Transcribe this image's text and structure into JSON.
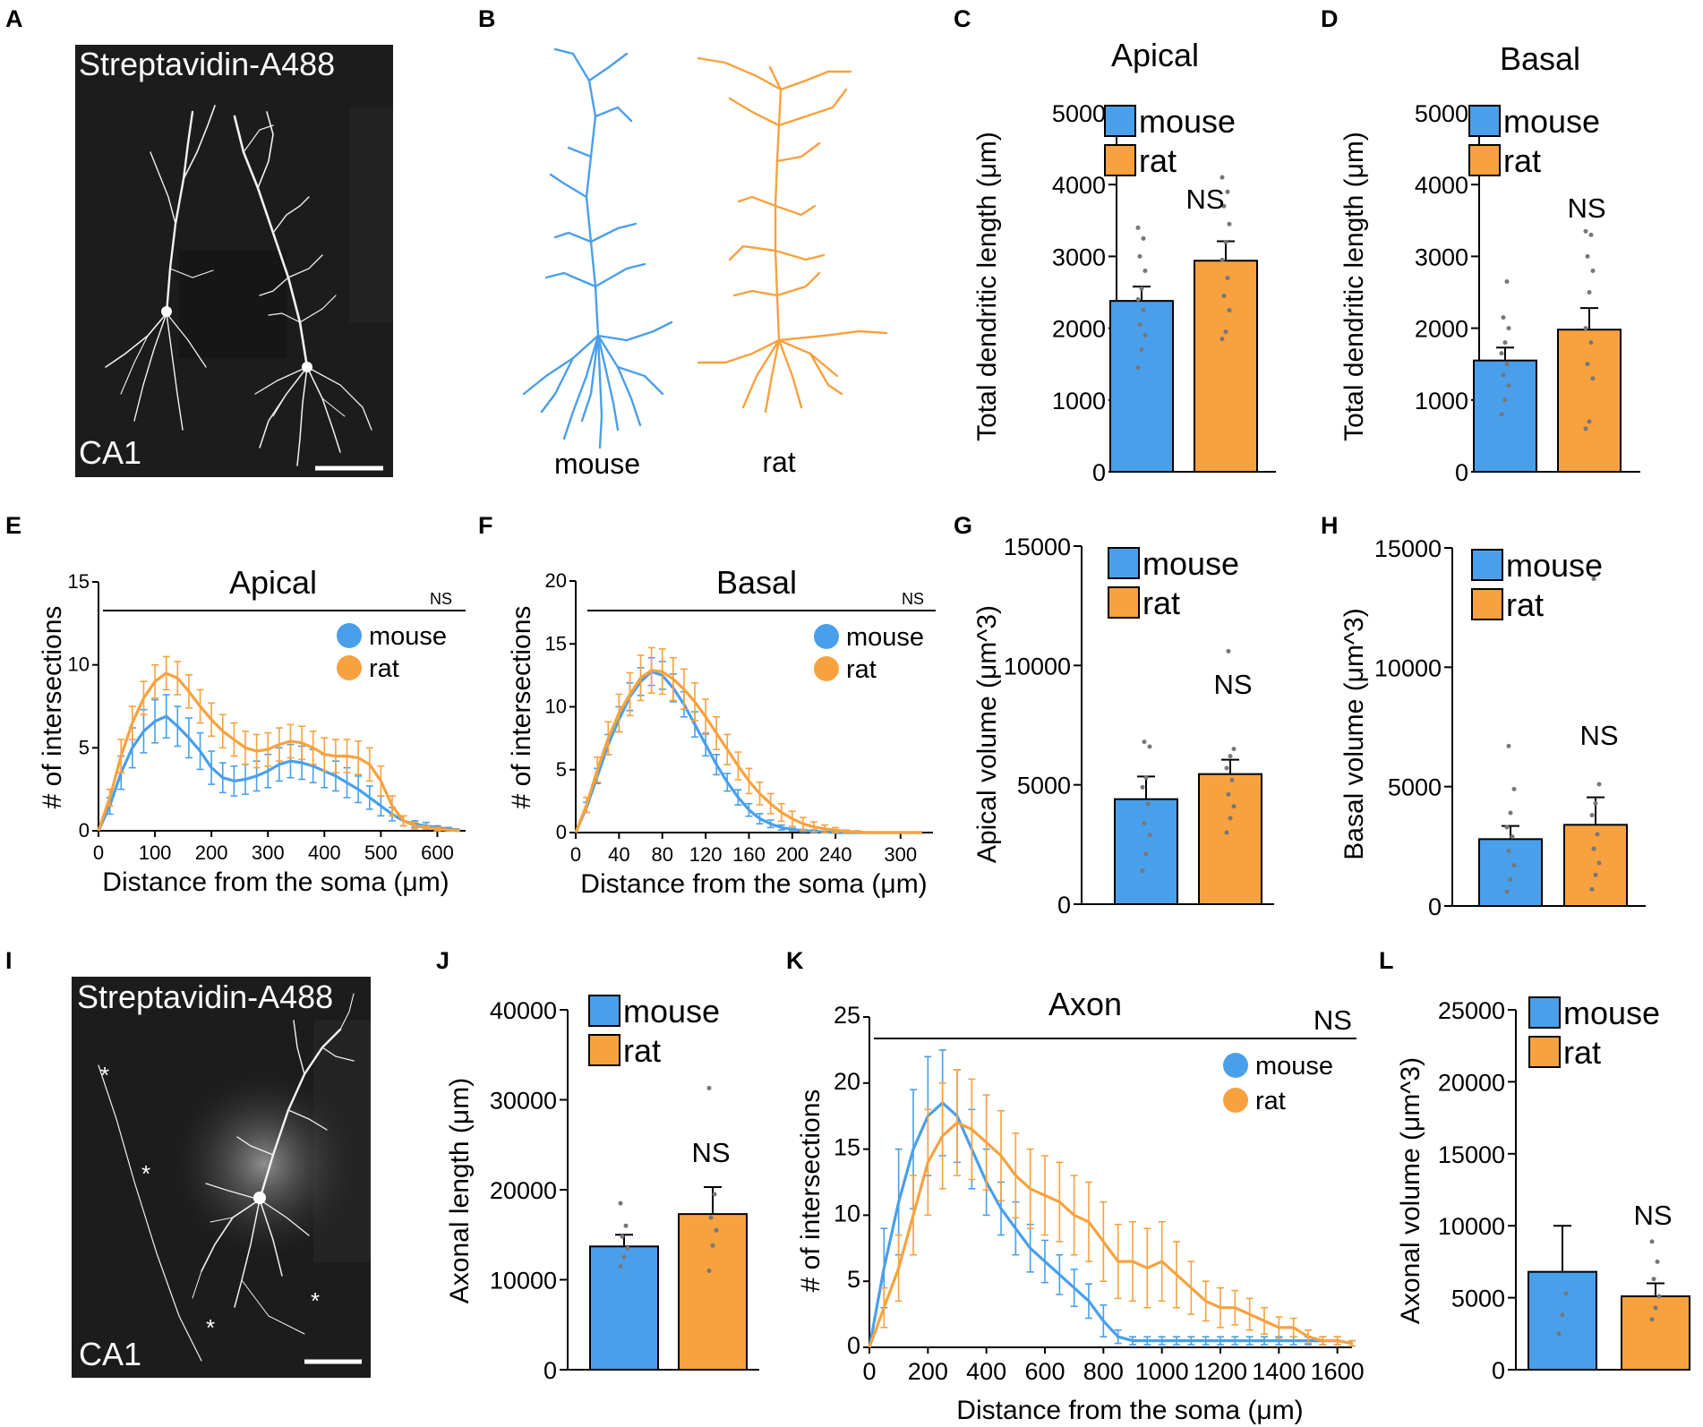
{
  "colors": {
    "mouse": "#4a9fea",
    "rat": "#f7a23f",
    "axis": "#000000",
    "dot": "#777777"
  },
  "panels": {
    "A": {
      "letter": "A",
      "stain": "Streptavidin-A488",
      "region": "CA1"
    },
    "B": {
      "letter": "B",
      "label_mouse": "mouse",
      "label_rat": "rat"
    },
    "C": {
      "letter": "C"
    },
    "D": {
      "letter": "D"
    },
    "E": {
      "letter": "E"
    },
    "F": {
      "letter": "F"
    },
    "G": {
      "letter": "G"
    },
    "H": {
      "letter": "H"
    },
    "I": {
      "letter": "I",
      "stain": "Streptavidin-A488",
      "region": "CA1"
    },
    "J": {
      "letter": "J"
    },
    "K": {
      "letter": "K"
    },
    "L": {
      "letter": "L"
    }
  },
  "chart_data": [
    {
      "id": "C",
      "type": "bar",
      "title": "Apical",
      "ylabel": "Total dendritic length (μm)",
      "categories": [
        "mouse",
        "rat"
      ],
      "values": [
        2380,
        2940
      ],
      "errors": [
        200,
        270
      ],
      "ylim": [
        0,
        5000
      ],
      "yticks": [
        0,
        1000,
        2000,
        3000,
        4000,
        5000
      ],
      "significance": "NS",
      "points": [
        [
          1450,
          1700,
          1900,
          2050,
          2250,
          2400,
          2550,
          2800,
          3000,
          3250,
          3400
        ],
        [
          1850,
          1950,
          2250,
          2450,
          2700,
          2950,
          3200,
          3450,
          3700,
          3900,
          4100
        ]
      ]
    },
    {
      "id": "D",
      "type": "bar",
      "title": "Basal",
      "ylabel": "Total dendritic length (μm)",
      "categories": [
        "mouse",
        "rat"
      ],
      "values": [
        1550,
        1980
      ],
      "errors": [
        180,
        300
      ],
      "ylim": [
        0,
        5000
      ],
      "yticks": [
        0,
        1000,
        2000,
        3000,
        4000,
        5000
      ],
      "significance": "NS",
      "points": [
        [
          800,
          1000,
          1200,
          1350,
          1500,
          1650,
          1800,
          2000,
          2150,
          2650
        ],
        [
          600,
          700,
          1300,
          1500,
          1800,
          2000,
          2500,
          2800,
          3000,
          3300,
          3350
        ]
      ]
    },
    {
      "id": "E",
      "type": "line",
      "title": "Apical",
      "xlabel": "Distance from the soma (μm)",
      "ylabel": "# of intersections",
      "significance": "NS",
      "xlim": [
        0,
        650
      ],
      "ylim": [
        0,
        15
      ],
      "xticks": [
        0,
        100,
        200,
        300,
        400,
        500,
        600
      ],
      "yticks": [
        0,
        5,
        10,
        15
      ],
      "series": [
        {
          "name": "mouse",
          "x": [
            0,
            20,
            40,
            60,
            80,
            100,
            120,
            140,
            160,
            180,
            200,
            220,
            240,
            260,
            280,
            300,
            320,
            340,
            360,
            380,
            400,
            420,
            440,
            460,
            480,
            500,
            520,
            540,
            560,
            580,
            600,
            620,
            640
          ],
          "y": [
            0,
            1.5,
            3.5,
            5.0,
            6.0,
            6.6,
            6.9,
            6.3,
            5.6,
            4.8,
            3.8,
            3.2,
            3.0,
            3.1,
            3.3,
            3.6,
            4.0,
            4.2,
            4.1,
            3.9,
            3.6,
            3.3,
            2.9,
            2.5,
            2.0,
            1.5,
            1.0,
            0.6,
            0.4,
            0.3,
            0.2,
            0.1,
            0.05
          ],
          "err": [
            0,
            0.5,
            1.0,
            1.2,
            1.3,
            1.3,
            1.3,
            1.2,
            1.2,
            1.1,
            1.0,
            0.9,
            0.9,
            0.9,
            0.9,
            1.0,
            1.0,
            1.0,
            1.0,
            1.0,
            1.0,
            0.9,
            0.9,
            0.8,
            0.7,
            0.6,
            0.4,
            0.3,
            0.2,
            0.2,
            0.1,
            0.1,
            0
          ]
        },
        {
          "name": "rat",
          "x": [
            0,
            20,
            40,
            60,
            80,
            100,
            120,
            140,
            160,
            180,
            200,
            220,
            240,
            260,
            280,
            300,
            320,
            340,
            360,
            380,
            400,
            420,
            440,
            460,
            480,
            500,
            520,
            540,
            560,
            580,
            600,
            620,
            640
          ],
          "y": [
            0,
            2.0,
            4.5,
            6.5,
            8.0,
            9.0,
            9.5,
            9.2,
            8.4,
            7.5,
            6.7,
            6.0,
            5.5,
            5.0,
            4.8,
            4.9,
            5.2,
            5.4,
            5.3,
            5.0,
            4.6,
            4.5,
            4.5,
            4.4,
            4.0,
            3.0,
            1.5,
            0.6,
            0.3,
            0.2,
            0.1,
            0.05,
            0
          ],
          "err": [
            0,
            0.5,
            1.0,
            1.0,
            1.0,
            1.0,
            1.0,
            1.0,
            1.0,
            1.0,
            1.0,
            1.0,
            1.0,
            1.0,
            1.0,
            1.0,
            1.0,
            1.0,
            1.0,
            1.0,
            1.0,
            1.0,
            1.0,
            1.0,
            1.0,
            0.9,
            0.6,
            0.3,
            0.2,
            0.1,
            0.1,
            0,
            0
          ]
        }
      ]
    },
    {
      "id": "F",
      "type": "line",
      "title": "Basal",
      "xlabel": "Distance from the soma (μm)",
      "ylabel": "# of intersections",
      "significance": "NS",
      "xlim": [
        0,
        330
      ],
      "ylim": [
        0,
        20
      ],
      "xticks": [
        0,
        40,
        80,
        120,
        160,
        200,
        240,
        300
      ],
      "yticks": [
        0,
        5,
        10,
        15,
        20
      ],
      "series": [
        {
          "name": "mouse",
          "x": [
            0,
            10,
            20,
            30,
            40,
            50,
            60,
            70,
            80,
            90,
            100,
            110,
            120,
            130,
            140,
            150,
            160,
            170,
            180,
            190,
            200,
            210,
            220,
            230,
            240,
            250,
            260,
            270,
            280,
            290,
            300,
            310,
            320
          ],
          "y": [
            0,
            2.0,
            4.5,
            7.0,
            9.0,
            10.8,
            12.0,
            12.8,
            12.5,
            11.5,
            10.2,
            8.6,
            7.0,
            5.4,
            4.0,
            2.8,
            1.8,
            1.1,
            0.7,
            0.4,
            0.25,
            0.15,
            0.1,
            0.05,
            0,
            0,
            0,
            0,
            0,
            0,
            0,
            0,
            0
          ],
          "err": [
            0,
            0.4,
            0.6,
            0.8,
            1.0,
            1.1,
            1.1,
            1.1,
            1.1,
            1.1,
            1.0,
            1.0,
            0.9,
            0.8,
            0.7,
            0.6,
            0.5,
            0.4,
            0.3,
            0.2,
            0.1,
            0.1,
            0.1,
            0,
            0,
            0,
            0,
            0,
            0,
            0,
            0,
            0,
            0
          ]
        },
        {
          "name": "rat",
          "x": [
            0,
            10,
            20,
            30,
            40,
            50,
            60,
            70,
            80,
            90,
            100,
            110,
            120,
            130,
            140,
            150,
            160,
            170,
            180,
            190,
            200,
            210,
            220,
            230,
            240,
            250,
            260,
            270,
            280,
            290,
            300,
            310,
            320
          ],
          "y": [
            0,
            2.2,
            5.0,
            7.5,
            9.5,
            11.0,
            12.3,
            12.9,
            12.8,
            12.2,
            11.4,
            10.4,
            9.2,
            7.9,
            6.6,
            5.3,
            4.1,
            3.1,
            2.3,
            1.6,
            1.1,
            0.7,
            0.45,
            0.3,
            0.2,
            0.1,
            0.05,
            0,
            0,
            0,
            0,
            0,
            0
          ],
          "err": [
            0,
            0.6,
            1.0,
            1.3,
            1.5,
            1.7,
            1.8,
            1.8,
            1.8,
            1.7,
            1.6,
            1.5,
            1.4,
            1.3,
            1.2,
            1.1,
            1.0,
            0.9,
            0.8,
            0.7,
            0.6,
            0.5,
            0.4,
            0.3,
            0.2,
            0.1,
            0.1,
            0,
            0,
            0,
            0,
            0,
            0
          ]
        }
      ]
    },
    {
      "id": "G",
      "type": "bar",
      "ylabel": "Apical volume (μm^3)",
      "categories": [
        "mouse",
        "rat"
      ],
      "values": [
        4400,
        5450
      ],
      "errors": [
        950,
        600
      ],
      "ylim": [
        0,
        15000
      ],
      "yticks": [
        0,
        5000,
        10000,
        15000
      ],
      "significance": "NS",
      "points": [
        [
          1400,
          2100,
          2900,
          3400,
          4200,
          4900,
          5300,
          6600,
          6800
        ],
        [
          3000,
          3600,
          4100,
          4600,
          5200,
          5700,
          6200,
          6500,
          10600
        ]
      ]
    },
    {
      "id": "H",
      "type": "bar",
      "ylabel": "Basal volume (μm^3)",
      "categories": [
        "mouse",
        "rat"
      ],
      "values": [
        2800,
        3400
      ],
      "errors": [
        550,
        1150
      ],
      "ylim": [
        0,
        15000
      ],
      "yticks": [
        0,
        5000,
        10000,
        15000
      ],
      "significance": "NS",
      "points": [
        [
          600,
          1100,
          1700,
          2300,
          2900,
          3300,
          3900,
          4900,
          6700
        ],
        [
          700,
          1300,
          1800,
          2400,
          3000,
          3800,
          4300,
          5100,
          13700
        ]
      ]
    },
    {
      "id": "J",
      "type": "bar",
      "ylabel": "Axonal length (μm)",
      "categories": [
        "mouse",
        "rat"
      ],
      "values": [
        13700,
        17300
      ],
      "errors": [
        1300,
        3000
      ],
      "ylim": [
        0,
        40000
      ],
      "yticks": [
        0,
        10000,
        20000,
        30000,
        40000
      ],
      "significance": "NS",
      "points": [
        [
          11500,
          12500,
          13500,
          14800,
          16000,
          18500
        ],
        [
          11000,
          13800,
          15500,
          16900,
          19500,
          31300
        ]
      ]
    },
    {
      "id": "K",
      "type": "line",
      "title": "Axon",
      "xlabel": "Distance from the soma (μm)",
      "ylabel": "# of intersections",
      "significance": "NS",
      "xlim": [
        0,
        1650
      ],
      "ylim": [
        0,
        25
      ],
      "xticks": [
        0,
        200,
        400,
        600,
        800,
        1000,
        1200,
        1400,
        1600
      ],
      "yticks": [
        0,
        5,
        10,
        15,
        20,
        25
      ],
      "series": [
        {
          "name": "mouse",
          "x": [
            0,
            50,
            100,
            150,
            200,
            250,
            300,
            350,
            400,
            450,
            500,
            550,
            600,
            650,
            700,
            750,
            800,
            850,
            900,
            950,
            1000,
            1050,
            1100,
            1150,
            1200,
            1250,
            1300,
            1350,
            1400,
            1450,
            1500,
            1550,
            1600,
            1650
          ],
          "y": [
            0,
            6.0,
            11.0,
            15.0,
            17.5,
            18.5,
            17.5,
            15.0,
            12.5,
            10.5,
            9.0,
            7.5,
            6.5,
            5.5,
            4.5,
            3.5,
            2.0,
            0.8,
            0.5,
            0.5,
            0.5,
            0.5,
            0.5,
            0.5,
            0.5,
            0.5,
            0.5,
            0.5,
            0.5,
            0.5,
            0.5,
            0.5,
            0.5,
            0.3
          ],
          "err": [
            0,
            3.0,
            4.0,
            4.5,
            4.5,
            4.0,
            3.5,
            3.0,
            2.5,
            2.0,
            2.0,
            1.8,
            1.6,
            1.5,
            1.4,
            1.3,
            1.2,
            0.5,
            0.3,
            0.3,
            0.3,
            0.3,
            0.3,
            0.3,
            0.3,
            0.3,
            0.3,
            0.3,
            0.3,
            0.3,
            0.3,
            0.3,
            0.3,
            0.2
          ]
        },
        {
          "name": "rat",
          "x": [
            0,
            50,
            100,
            150,
            200,
            250,
            300,
            350,
            400,
            450,
            500,
            550,
            600,
            650,
            700,
            750,
            800,
            850,
            900,
            950,
            1000,
            1050,
            1100,
            1150,
            1200,
            1250,
            1300,
            1350,
            1400,
            1450,
            1500,
            1550,
            1600,
            1650
          ],
          "y": [
            0,
            3.0,
            6.0,
            10.0,
            14.0,
            16.0,
            17.0,
            16.5,
            15.5,
            14.5,
            13.0,
            12.0,
            11.5,
            11.0,
            10.0,
            9.5,
            8.0,
            6.5,
            6.5,
            6.0,
            6.5,
            5.5,
            4.5,
            3.5,
            3.0,
            3.0,
            2.5,
            2.0,
            1.5,
            1.5,
            0.8,
            0.5,
            0.5,
            0.3
          ],
          "err": [
            0,
            1.5,
            2.5,
            3.0,
            4.0,
            4.0,
            4.0,
            3.8,
            3.6,
            3.4,
            3.2,
            3.0,
            3.0,
            3.0,
            3.0,
            3.0,
            3.0,
            2.8,
            3.0,
            3.0,
            3.0,
            2.5,
            2.0,
            1.5,
            1.5,
            1.3,
            1.2,
            1.0,
            0.8,
            0.7,
            0.5,
            0.3,
            0.3,
            0.2
          ]
        }
      ]
    },
    {
      "id": "L",
      "type": "bar",
      "ylabel": "Axonal volume (μm^3)",
      "categories": [
        "mouse",
        "rat"
      ],
      "values": [
        6800,
        5100
      ],
      "errors": [
        3200,
        900
      ],
      "ylim": [
        0,
        25000
      ],
      "yticks": [
        0,
        5000,
        10000,
        15000,
        20000,
        25000
      ],
      "significance": "NS",
      "points": [
        [
          2500,
          3800,
          5300
        ],
        [
          3500,
          4300,
          5100,
          6300,
          7500,
          8900
        ]
      ]
    }
  ]
}
